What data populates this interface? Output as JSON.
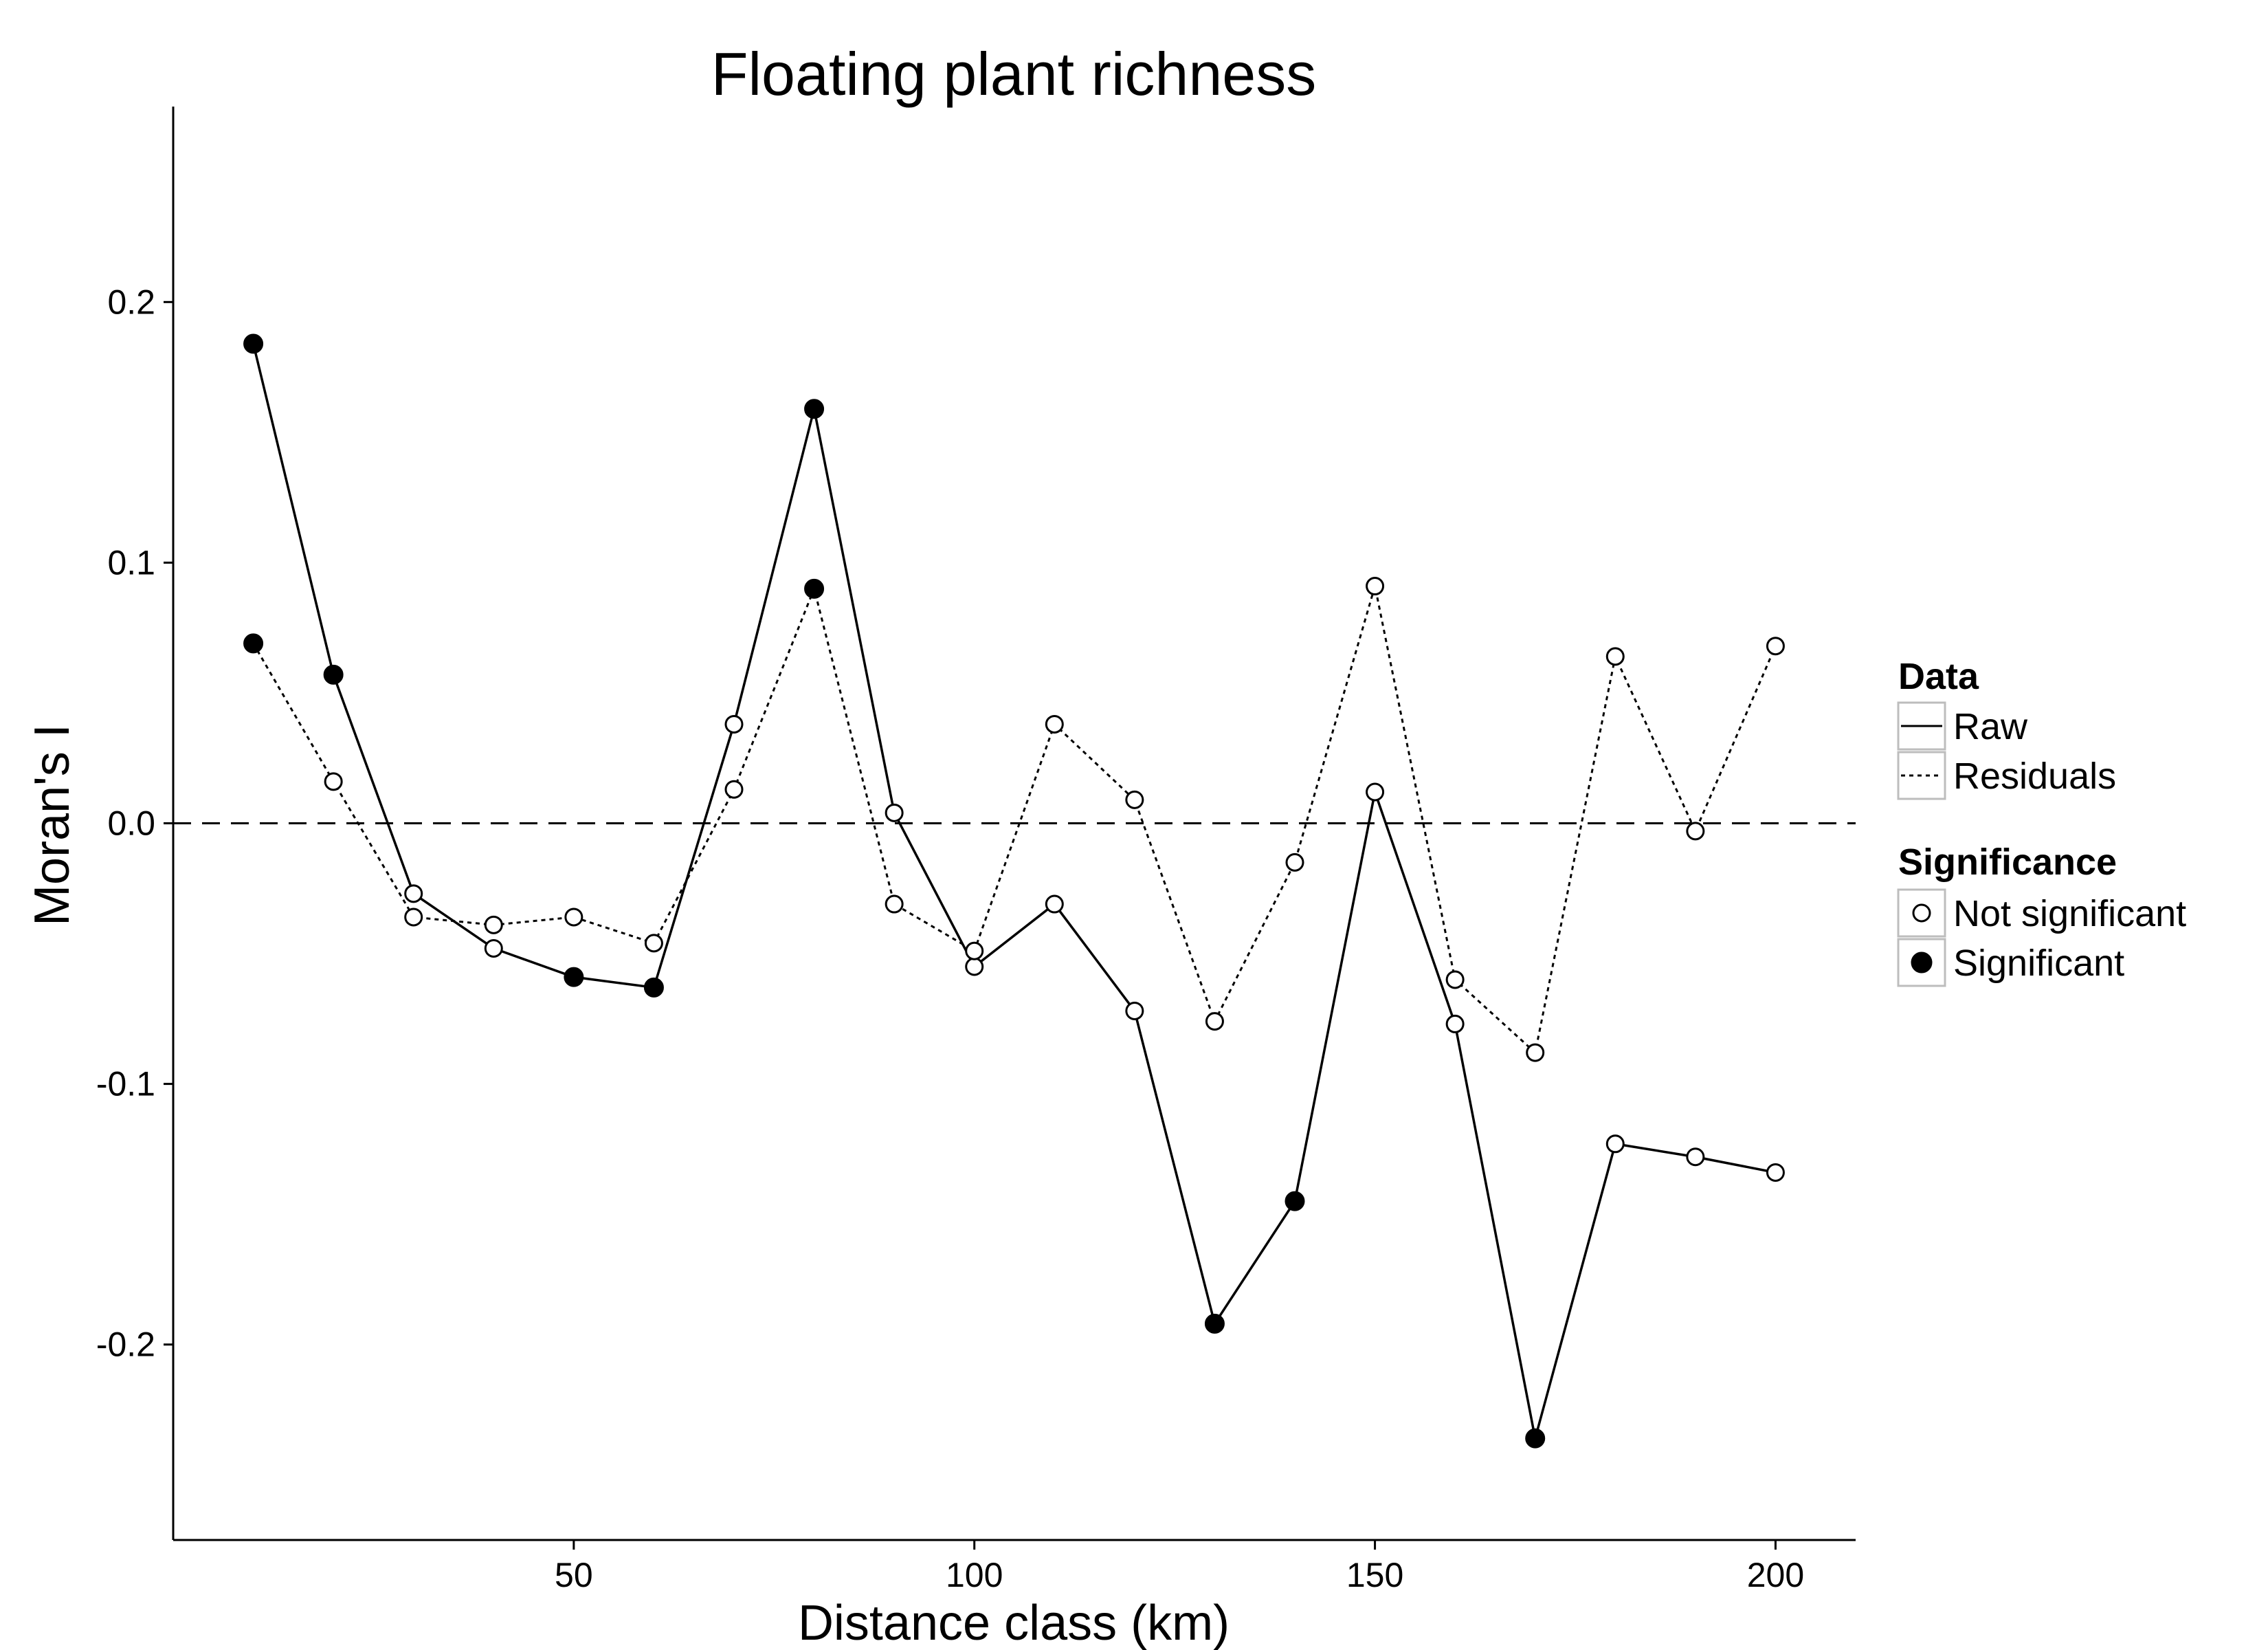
{
  "chart_data": {
    "type": "line",
    "title": "Floating plant richness",
    "xlabel": "Distance class (km)",
    "ylabel": "Moran's I",
    "xlim": [
      0,
      210
    ],
    "ylim": [
      -0.275,
      0.275
    ],
    "xticks": [
      50,
      100,
      150,
      200
    ],
    "xtick_labels": [
      "50",
      "100",
      "150",
      "200"
    ],
    "yticks": [
      -0.2,
      -0.1,
      0.0,
      0.1,
      0.2
    ],
    "ytick_labels": [
      "-0.2",
      "-0.1",
      "0.0",
      "0.1",
      "0.2"
    ],
    "reference_line": {
      "y": 0.0,
      "style": "dashed"
    },
    "grid": false,
    "x": [
      10,
      20,
      30,
      40,
      50,
      60,
      70,
      80,
      90,
      100,
      110,
      120,
      130,
      140,
      150,
      160,
      170,
      180,
      190,
      200
    ],
    "series": [
      {
        "name": "Raw",
        "line_style": "solid",
        "values": [
          0.184,
          0.057,
          -0.027,
          -0.048,
          -0.059,
          -0.063,
          0.038,
          0.159,
          0.004,
          -0.055,
          -0.031,
          -0.072,
          -0.192,
          -0.145,
          0.012,
          -0.077,
          -0.236,
          -0.123,
          -0.128,
          -0.134
        ],
        "significant": [
          true,
          true,
          false,
          false,
          true,
          true,
          false,
          true,
          false,
          false,
          false,
          false,
          true,
          true,
          false,
          false,
          true,
          false,
          false,
          false
        ]
      },
      {
        "name": "Residuals",
        "line_style": "dotted",
        "values": [
          0.069,
          0.016,
          -0.036,
          -0.039,
          -0.036,
          -0.046,
          0.013,
          0.09,
          -0.031,
          -0.049,
          0.038,
          0.009,
          -0.076,
          -0.015,
          0.091,
          -0.06,
          -0.088,
          0.064,
          -0.003,
          0.068
        ],
        "significant": [
          true,
          false,
          false,
          false,
          false,
          false,
          false,
          true,
          false,
          false,
          false,
          false,
          false,
          false,
          false,
          false,
          false,
          false,
          false,
          false
        ]
      }
    ],
    "legend": {
      "placement": "right",
      "data_title": "Data",
      "data_items": [
        "Raw",
        "Residuals"
      ],
      "significance_title": "Significance",
      "significance_items": [
        "Not significant",
        "Significant"
      ]
    }
  }
}
